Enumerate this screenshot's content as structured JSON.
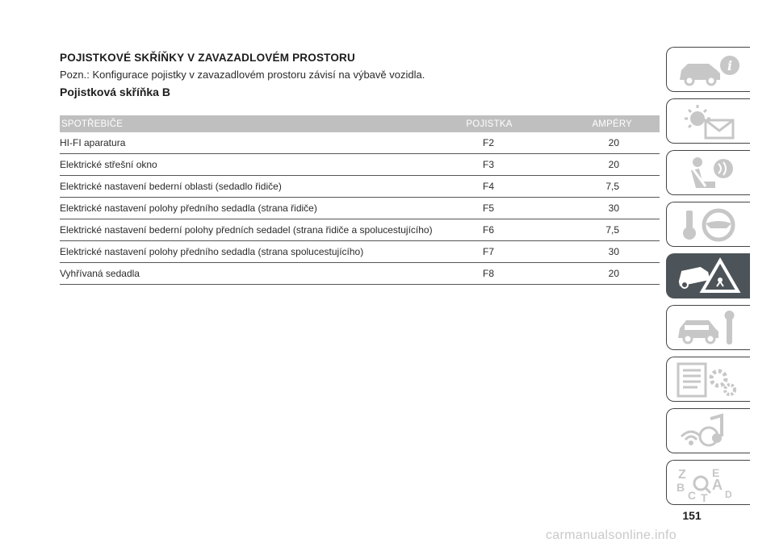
{
  "heading": "POJISTKOVÉ SKŘÍŇKY V ZAVAZADLOVÉM PROSTORU",
  "note": "Pozn.: Konfigurace pojistky v zavazadlovém prostoru závisí na výbavě vozidla.",
  "subheading": "Pojistková skříňka B",
  "table": {
    "headers": [
      "SPOTŘEBIČE",
      "POJISTKA",
      "AMPÉRY"
    ],
    "rows": [
      [
        "HI-FI aparatura",
        "F2",
        "20"
      ],
      [
        "Elektrické střešní okno",
        "F3",
        "20"
      ],
      [
        "Elektrické nastavení bederní oblasti (sedadlo řidiče)",
        "F4",
        "7,5"
      ],
      [
        "Elektrické nastavení polohy předního sedadla (strana řidiče)",
        "F5",
        "30"
      ],
      [
        "Elektrické nastavení bederní polohy předních sedadel (strana řidiče a spolucestujícího)",
        "F6",
        "7,5"
      ],
      [
        "Elektrické nastavení polohy předního sedadla (strana spolucestujícího)",
        "F7",
        "30"
      ],
      [
        "Vyhřívaná sedadla",
        "F8",
        "20"
      ]
    ]
  },
  "sidebar": {
    "tabs": [
      {
        "icon": "car-info-icon",
        "active": false
      },
      {
        "icon": "warning-lights-icon",
        "active": false
      },
      {
        "icon": "seat-safety-icon",
        "active": false
      },
      {
        "icon": "key-steering-wheel-icon",
        "active": false
      },
      {
        "icon": "emergency-triangle-icon",
        "active": true
      },
      {
        "icon": "car-maintenance-icon",
        "active": false
      },
      {
        "icon": "technical-data-icon",
        "active": false
      },
      {
        "icon": "multimedia-icon",
        "active": false
      },
      {
        "icon": "index-icon",
        "active": false
      }
    ],
    "index_letters": [
      "Z",
      "E",
      "B",
      "A",
      "C",
      "T",
      "D"
    ]
  },
  "page_number": "151",
  "watermark": "carmanualsonline.info",
  "colors": {
    "header_bg": "#bfbfbf",
    "active_tab": "#4d5459",
    "tab_icon": "#c7c7c7"
  }
}
